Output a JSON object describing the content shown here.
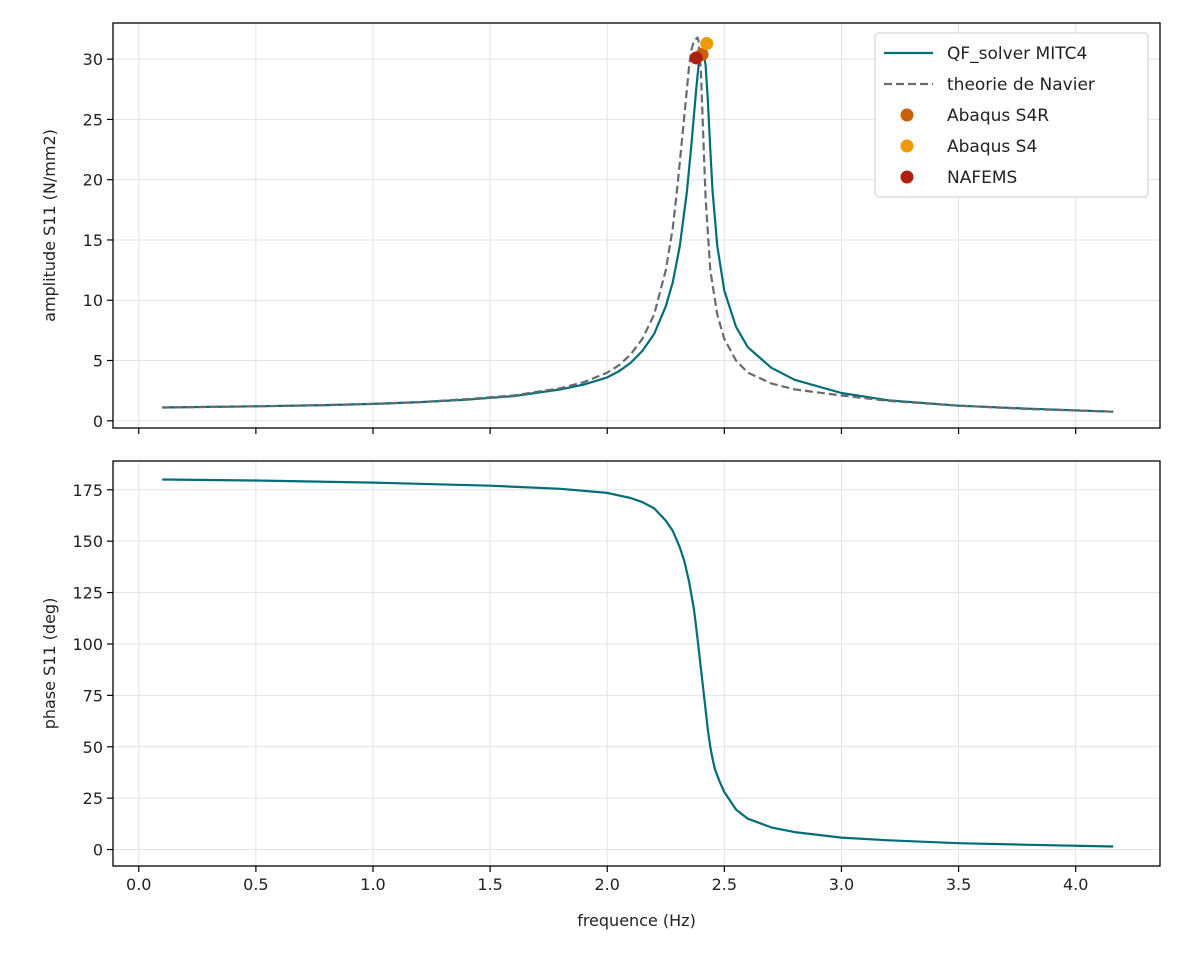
{
  "chart_data": [
    {
      "type": "line",
      "ylabel": "amplitude S11 (N/mm2)",
      "xlabel": "",
      "xlim": [
        -0.11,
        4.36
      ],
      "ylim": [
        -0.6,
        33.0
      ],
      "x_ticks": [
        0.0,
        0.5,
        1.0,
        1.5,
        2.0,
        2.5,
        3.0,
        3.5,
        4.0
      ],
      "y_ticks": [
        0,
        5,
        10,
        15,
        20,
        25,
        30
      ],
      "x_tick_labels_shown": false,
      "grid": true,
      "legend_position": "top-right",
      "series": [
        {
          "name": "QF_solver MITC4",
          "kind": "line",
          "color": "#006d77",
          "style": "solid",
          "x": [
            0.1,
            0.5,
            0.8,
            1.0,
            1.2,
            1.4,
            1.6,
            1.8,
            1.9,
            2.0,
            2.05,
            2.1,
            2.15,
            2.2,
            2.25,
            2.28,
            2.31,
            2.34,
            2.36,
            2.38,
            2.39,
            2.4,
            2.41,
            2.42,
            2.43,
            2.44,
            2.45,
            2.47,
            2.5,
            2.55,
            2.6,
            2.7,
            2.8,
            3.0,
            3.2,
            3.5,
            3.8,
            4.16
          ],
          "y": [
            1.1,
            1.2,
            1.3,
            1.4,
            1.55,
            1.75,
            2.05,
            2.6,
            3.0,
            3.6,
            4.1,
            4.8,
            5.8,
            7.2,
            9.5,
            11.5,
            14.5,
            19.0,
            23.0,
            27.5,
            29.5,
            30.5,
            30.6,
            29.5,
            26.5,
            22.5,
            19.0,
            14.5,
            10.8,
            7.8,
            6.1,
            4.4,
            3.4,
            2.3,
            1.7,
            1.25,
            1.0,
            0.75
          ]
        },
        {
          "name": "theorie de Navier",
          "kind": "line",
          "color": "#666b70",
          "style": "dashed",
          "x": [
            0.1,
            0.5,
            0.8,
            1.0,
            1.2,
            1.4,
            1.6,
            1.8,
            1.9,
            2.0,
            2.05,
            2.1,
            2.15,
            2.2,
            2.25,
            2.28,
            2.3,
            2.32,
            2.34,
            2.35,
            2.36,
            2.37,
            2.38,
            2.385,
            2.39,
            2.4,
            2.41,
            2.42,
            2.44,
            2.47,
            2.5,
            2.55,
            2.6,
            2.7,
            2.8,
            3.0,
            3.2,
            3.5,
            3.8,
            4.16
          ],
          "y": [
            1.1,
            1.2,
            1.3,
            1.4,
            1.55,
            1.8,
            2.1,
            2.7,
            3.2,
            4.0,
            4.6,
            5.5,
            6.8,
            8.8,
            12.5,
            16.0,
            19.5,
            23.5,
            27.5,
            29.5,
            30.8,
            31.5,
            31.7,
            31.8,
            31.5,
            29.0,
            23.5,
            18.5,
            12.5,
            8.8,
            6.8,
            5.0,
            4.0,
            3.1,
            2.6,
            2.1,
            1.65,
            1.25,
            0.98,
            0.75
          ]
        },
        {
          "name": "Abaqus S4R",
          "kind": "scatter",
          "color": "#c8610a",
          "x": [
            2.405
          ],
          "y": [
            30.4
          ]
        },
        {
          "name": "Abaqus S4",
          "kind": "scatter",
          "color": "#ee9a08",
          "x": [
            2.425
          ],
          "y": [
            31.3
          ]
        },
        {
          "name": "NAFEMS",
          "kind": "scatter",
          "color": "#ae2012",
          "x": [
            2.38
          ],
          "y": [
            30.1
          ]
        }
      ]
    },
    {
      "type": "line",
      "ylabel": "phase S11 (deg)",
      "xlabel": "frequence (Hz)",
      "xlim": [
        -0.11,
        4.36
      ],
      "ylim": [
        -8,
        189
      ],
      "x_ticks": [
        0.0,
        0.5,
        1.0,
        1.5,
        2.0,
        2.5,
        3.0,
        3.5,
        4.0
      ],
      "x_tick_labels": [
        "0.0",
        "0.5",
        "1.0",
        "1.5",
        "2.0",
        "2.5",
        "3.0",
        "3.5",
        "4.0"
      ],
      "y_ticks": [
        0,
        25,
        50,
        75,
        100,
        125,
        150,
        175
      ],
      "grid": true,
      "series": [
        {
          "kind": "line",
          "color": "#006d77",
          "style": "solid",
          "x": [
            0.1,
            0.5,
            1.0,
            1.5,
            1.8,
            2.0,
            2.1,
            2.15,
            2.2,
            2.25,
            2.28,
            2.31,
            2.33,
            2.35,
            2.37,
            2.38,
            2.39,
            2.4,
            2.41,
            2.42,
            2.43,
            2.44,
            2.45,
            2.46,
            2.48,
            2.5,
            2.55,
            2.6,
            2.7,
            2.8,
            3.0,
            3.2,
            3.5,
            3.8,
            4.16
          ],
          "y": [
            180,
            179.5,
            178.5,
            177,
            175.5,
            173.5,
            171,
            169,
            166,
            160,
            155,
            147,
            140,
            130,
            117,
            108,
            98,
            88,
            78,
            68,
            58,
            50,
            44,
            39,
            33,
            28,
            19.5,
            15,
            10.8,
            8.5,
            5.8,
            4.5,
            3.1,
            2.3,
            1.5
          ]
        }
      ]
    }
  ]
}
